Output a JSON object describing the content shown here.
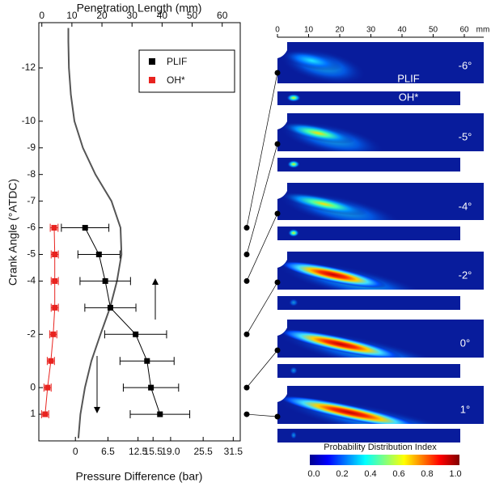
{
  "chart_data": {
    "type": "scatter",
    "xlabel": "Penetration Length (mm)",
    "x2label": "Pressure Difference (bar)",
    "ylabel": "Crank Angle (°ATDC)",
    "xlim": [
      -1,
      66
    ],
    "xticks": [
      0,
      10,
      20,
      30,
      40,
      50,
      60
    ],
    "x2lim": [
      -7.3,
      32.9
    ],
    "x2ticks": [
      0,
      6.5,
      12.5,
      15.5,
      {
        "value": 19,
        "label": "19.0"
      },
      25.5,
      31.5
    ],
    "ylim": [
      2,
      -13.7
    ],
    "yticks": [
      -12,
      -10,
      -9,
      -8,
      -7,
      -6,
      -5,
      -4,
      -2,
      0,
      1
    ],
    "legend": "upper right",
    "series": [
      {
        "name": "PLIF",
        "color": "#000000",
        "y": [
          -6,
          -5,
          -4,
          -3,
          -2,
          -1,
          0,
          1
        ],
        "x": [
          14.4,
          19.0,
          21.1,
          22.8,
          31.2,
          35.0,
          36.3,
          39.3
        ],
        "xerr": [
          7.9,
          7.0,
          8.4,
          8.5,
          10.3,
          9.0,
          9.2,
          9.9
        ]
      },
      {
        "name": "OH*",
        "color": "#e8231f",
        "y": [
          -6,
          -5,
          -4,
          -3,
          -2,
          -1,
          0,
          1
        ],
        "x": [
          4.1,
          4.3,
          4.3,
          4.3,
          3.8,
          3.0,
          1.9,
          1.1
        ],
        "xerr": [
          1.3,
          1.2,
          1.2,
          1.2,
          1.2,
          1.2,
          1.2,
          1.2
        ]
      }
    ],
    "curve": {
      "axis": "x2",
      "color": "#555555",
      "y": [
        -13.5,
        -13,
        -12,
        -11,
        -10,
        -9,
        -8,
        -7,
        -6,
        -5,
        -4,
        -3,
        -2,
        -1,
        0,
        1,
        1.9
      ],
      "x": [
        -1.4,
        -1.4,
        -1.3,
        -0.9,
        -0.2,
        1.5,
        4.0,
        7.2,
        9.0,
        9.2,
        8.3,
        6.9,
        5.0,
        3.2,
        1.9,
        1.0,
        0.6
      ]
    }
  },
  "image_panels": {
    "axis_ticks": [
      "0",
      "10",
      "20",
      "30",
      "40",
      "50",
      "60"
    ],
    "unit": "mm",
    "angles": [
      "-6°",
      "-5°",
      "-4°",
      "-2°",
      "0°",
      "1°"
    ],
    "plif_label": "PLIF",
    "oh_label": "OH*",
    "colorbar": {
      "title": "Probability Distribution Index",
      "ticks": [
        "0.0",
        "0.2",
        "0.4",
        "0.6",
        "0.8",
        "1.0"
      ]
    }
  }
}
